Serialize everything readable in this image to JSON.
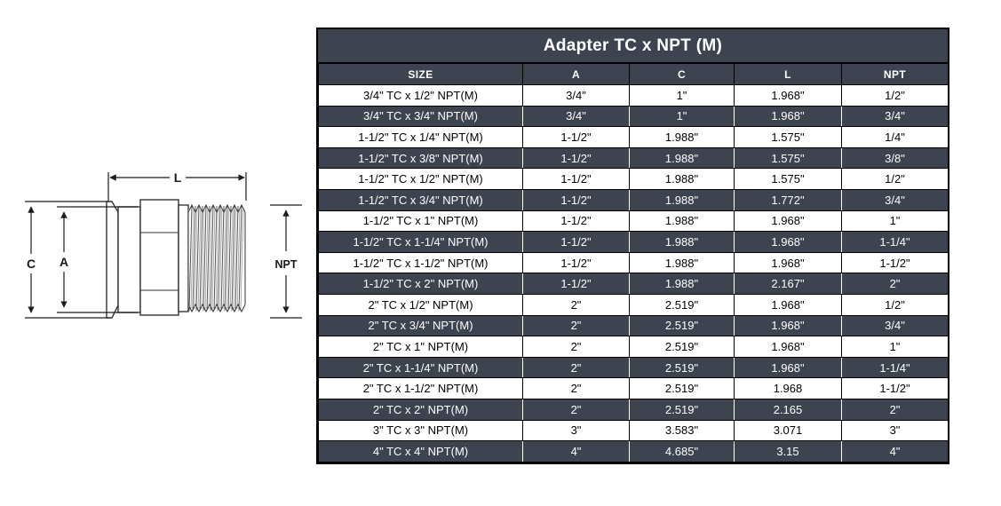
{
  "diagram": {
    "dim_labels": {
      "l": "L",
      "c": "C",
      "a": "A",
      "npt": "NPT"
    }
  },
  "table": {
    "title": "Adapter TC x NPT (M)",
    "columns": [
      "SIZE",
      "A",
      "C",
      "L",
      "NPT"
    ],
    "rows": [
      [
        "3/4\" TC x 1/2\" NPT(M)",
        "3/4\"",
        "1\"",
        "1.968\"",
        "1/2\""
      ],
      [
        "3/4\" TC x 3/4\" NPT(M)",
        "3/4\"",
        "1\"",
        "1.968\"",
        "3/4\""
      ],
      [
        "1-1/2\" TC x 1/4\" NPT(M)",
        "1-1/2\"",
        "1.988\"",
        "1.575\"",
        "1/4\""
      ],
      [
        "1-1/2\" TC x 3/8\" NPT(M)",
        "1-1/2\"",
        "1.988\"",
        "1.575\"",
        "3/8\""
      ],
      [
        "1-1/2\" TC x 1/2\" NPT(M)",
        "1-1/2\"",
        "1.988\"",
        "1.575\"",
        "1/2\""
      ],
      [
        "1-1/2\" TC x 3/4\" NPT(M)",
        "1-1/2\"",
        "1.988\"",
        "1.772\"",
        "3/4\""
      ],
      [
        "1-1/2\" TC x 1\" NPT(M)",
        "1-1/2\"",
        "1.988\"",
        "1.968\"",
        "1\""
      ],
      [
        "1-1/2\" TC x 1-1/4\" NPT(M)",
        "1-1/2\"",
        "1.988\"",
        "1.968\"",
        "1-1/4\""
      ],
      [
        "1-1/2\" TC x 1-1/2\" NPT(M)",
        "1-1/2\"",
        "1.988\"",
        "1.968\"",
        "1-1/2\""
      ],
      [
        "1-1/2\" TC x 2\" NPT(M)",
        "1-1/2\"",
        "1.988\"",
        "2.167\"",
        "2\""
      ],
      [
        "2\" TC x 1/2\" NPT(M)",
        "2\"",
        "2.519\"",
        "1.968\"",
        "1/2\""
      ],
      [
        "2\" TC x 3/4\" NPT(M)",
        "2\"",
        "2.519\"",
        "1.968\"",
        "3/4\""
      ],
      [
        "2\" TC x 1\" NPT(M)",
        "2\"",
        "2.519\"",
        "1.968\"",
        "1\""
      ],
      [
        "2\" TC x 1-1/4\" NPT(M)",
        "2\"",
        "2.519\"",
        "1.968\"",
        "1-1/4\""
      ],
      [
        "2\" TC x 1-1/2\" NPT(M)",
        "2\"",
        "2.519\"",
        "1.968",
        "1-1/2\""
      ],
      [
        "2\" TC x 2\" NPT(M)",
        "2\"",
        "2.519\"",
        "2.165",
        "2\""
      ],
      [
        "3\" TC x 3\" NPT(M)",
        "3\"",
        "3.583\"",
        "3.071",
        "3\""
      ],
      [
        "4\" TC x 4\" NPT(M)",
        "4\"",
        "4.685\"",
        "3.15",
        "4\""
      ]
    ],
    "colors": {
      "dark_bg": "#3E4350",
      "light_bg": "#FFFFFF",
      "border": "#000000",
      "dark_text": "#FFFFFF",
      "light_text": "#000000"
    }
  }
}
